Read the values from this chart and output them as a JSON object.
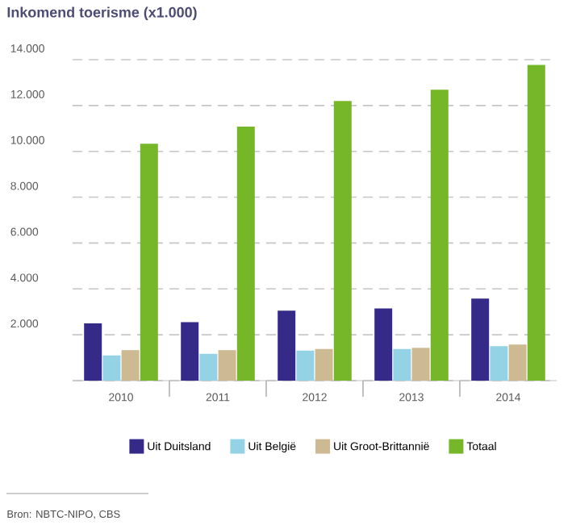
{
  "chart_data": {
    "type": "bar",
    "title": "Inkomend toerisme (x1.000)",
    "categories": [
      "2010",
      "2011",
      "2012",
      "2013",
      "2014"
    ],
    "series": [
      {
        "name": "Uit Duitsland",
        "color": "#352a87",
        "values": [
          2500,
          2550,
          3050,
          3150,
          3580
        ]
      },
      {
        "name": "Uit België",
        "color": "#94d2e6",
        "values": [
          1100,
          1170,
          1310,
          1380,
          1500
        ]
      },
      {
        "name": "Uit Groot-Brittannië",
        "color": "#cdb992",
        "values": [
          1330,
          1330,
          1380,
          1430,
          1570
        ]
      },
      {
        "name": "Totaal",
        "color": "#76b72a",
        "values": [
          10330,
          11080,
          12200,
          12690,
          13770
        ]
      }
    ],
    "ylim": [
      0,
      14000
    ],
    "yticks": [
      {
        "value": 0,
        "label": null
      },
      {
        "value": 2000,
        "label": "2.000"
      },
      {
        "value": 4000,
        "label": "4.000"
      },
      {
        "value": 6000,
        "label": "6.000"
      },
      {
        "value": 8000,
        "label": "8.000"
      },
      {
        "value": 10000,
        "label": "10.000"
      },
      {
        "value": 12000,
        "label": "12.000"
      },
      {
        "value": 14000,
        "label": "14.000"
      }
    ],
    "grid": "y",
    "legend": "bottom",
    "annotations": [
      "Bron: NBTC-NIPO, CBS"
    ]
  }
}
